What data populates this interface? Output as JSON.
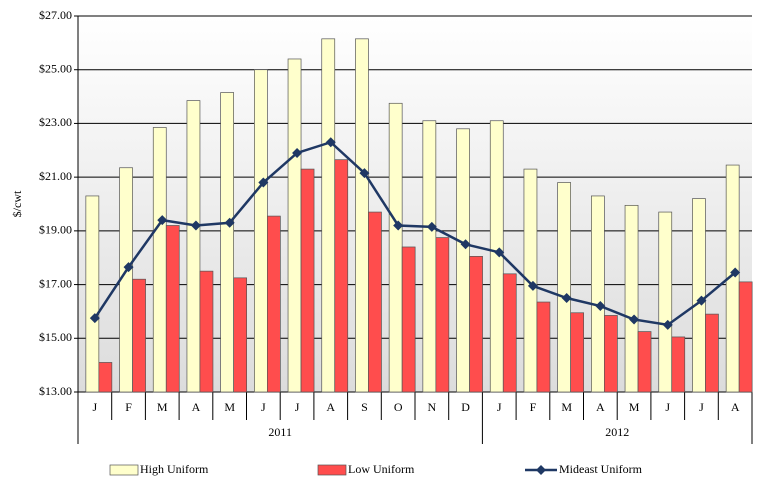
{
  "chart_data": {
    "type": "bar",
    "ylabel": "$/cwt",
    "groups": [
      {
        "label": "2011",
        "categories": [
          "J",
          "F",
          "M",
          "A",
          "M",
          "J",
          "J",
          "A",
          "S",
          "O",
          "N",
          "D"
        ]
      },
      {
        "label": "2012",
        "categories": [
          "J",
          "F",
          "M",
          "A",
          "M",
          "J",
          "J",
          "A"
        ]
      }
    ],
    "series": [
      {
        "name": "High Uniform",
        "type": "bar",
        "color": "#ffffcc",
        "values": [
          20.3,
          21.35,
          22.85,
          23.85,
          24.15,
          25.0,
          25.4,
          26.15,
          26.15,
          23.75,
          23.1,
          22.8,
          23.1,
          21.3,
          20.8,
          20.3,
          19.95,
          19.7,
          20.2,
          21.45
        ]
      },
      {
        "name": "Low Uniform",
        "type": "bar",
        "color": "#ff4d4d",
        "values": [
          14.1,
          17.2,
          19.2,
          17.5,
          17.25,
          19.55,
          21.3,
          21.65,
          19.7,
          18.4,
          18.75,
          18.05,
          17.4,
          16.35,
          15.95,
          15.85,
          15.25,
          15.05,
          15.9,
          17.1
        ]
      },
      {
        "name": "Mideast Uniform",
        "type": "line",
        "color": "#1f3864",
        "values": [
          15.75,
          17.65,
          19.4,
          19.2,
          19.3,
          20.8,
          21.9,
          22.3,
          21.15,
          19.2,
          19.15,
          18.5,
          18.2,
          16.95,
          16.5,
          16.2,
          15.7,
          15.5,
          16.4,
          17.45
        ]
      }
    ],
    "ylim": [
      13,
      27
    ],
    "yticks": [
      {
        "value": 13,
        "label": "$13.00"
      },
      {
        "value": 15,
        "label": "$15.00"
      },
      {
        "value": 17,
        "label": "$17.00"
      },
      {
        "value": 19,
        "label": "$19.00"
      },
      {
        "value": 21,
        "label": "$21.00"
      },
      {
        "value": 23,
        "label": "$23.00"
      },
      {
        "value": 25,
        "label": "$25.00"
      },
      {
        "value": 27,
        "label": "$27.00"
      }
    ],
    "grid": true
  }
}
